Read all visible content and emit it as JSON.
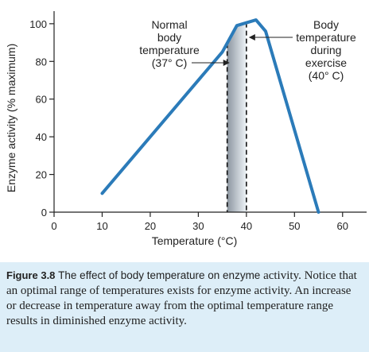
{
  "chart_data": {
    "type": "line",
    "title": "",
    "xlabel": "Temperature (°C)",
    "ylabel": "Enzyme activity (% maximum)",
    "xlim": [
      0,
      65
    ],
    "ylim": [
      0,
      105
    ],
    "xticks": [
      "0",
      "10",
      "20",
      "30",
      "40",
      "50",
      "60"
    ],
    "yticks": [
      "0",
      "20",
      "40",
      "60",
      "80",
      "100"
    ],
    "grid": false,
    "series": [
      {
        "x": [
          10,
          35,
          38,
          42,
          44,
          55
        ],
        "y": [
          10,
          85,
          99,
          102,
          96,
          0
        ],
        "color": "#2b7bb9"
      }
    ],
    "optimal_range": [
      36,
      40
    ],
    "annotations": [
      {
        "lines": [
          "Normal",
          "body",
          "temperature",
          "(37° C)"
        ],
        "points_to": 37
      },
      {
        "lines": [
          "Body",
          "temperature",
          "during",
          "exercise",
          "(40° C)"
        ],
        "points_to": 40
      }
    ]
  },
  "caption": {
    "label": "Figure 3.8",
    "title": "The effect of body temperature on enzyme",
    "body": "activity. Notice that an optimal range of temperatures exists for enzyme activity. An increase or decrease in temperature away from the optimal temperature range results in diminished enzyme activity."
  },
  "colors": {
    "curve": "#2b7bb9",
    "caption_bg": "#ddeef8",
    "band_dark": "#8c96a0",
    "band_light": "#eef3f7"
  }
}
